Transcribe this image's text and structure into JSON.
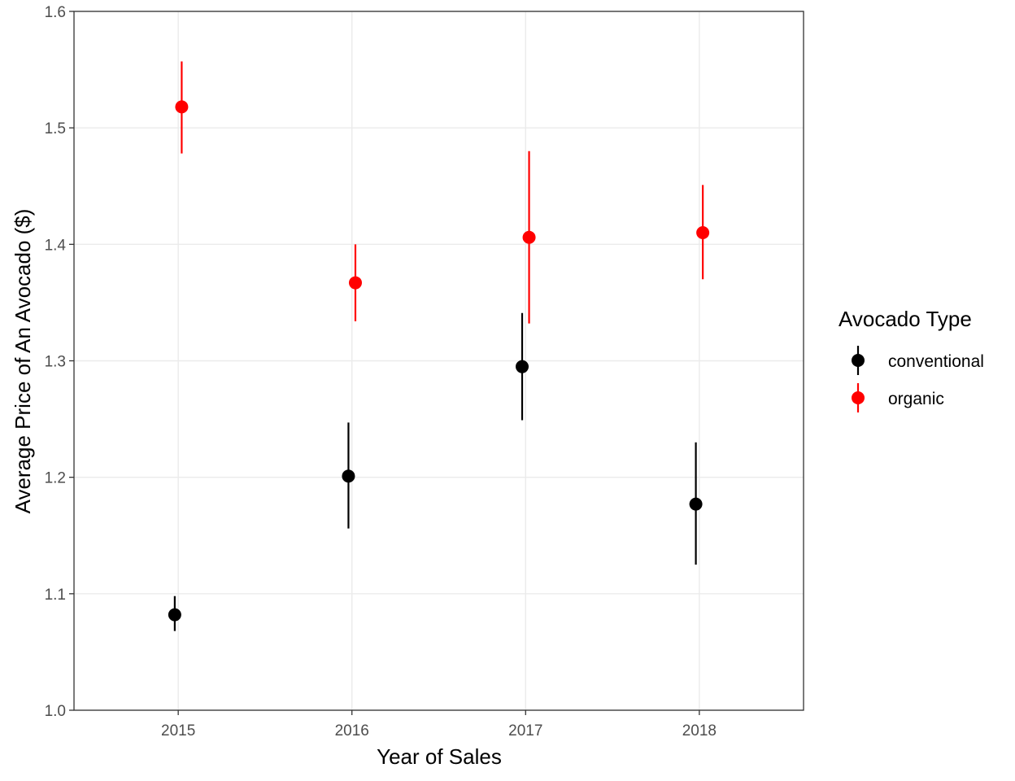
{
  "chart_data": {
    "type": "scatter",
    "xlabel": "Year of Sales",
    "ylabel": "Average Price of An Avocado ($)",
    "categories": [
      "2015",
      "2016",
      "2017",
      "2018"
    ],
    "ylim": [
      1.0,
      1.6
    ],
    "yticks": [
      "1.0",
      "1.1",
      "1.2",
      "1.3",
      "1.4",
      "1.5",
      "1.6"
    ],
    "grid": true,
    "legend": {
      "title": "Avocado Type",
      "position": "right"
    },
    "series": [
      {
        "name": "conventional",
        "color": "#000000",
        "dodge": -0.02,
        "values": [
          1.082,
          1.201,
          1.295,
          1.177
        ],
        "lower": [
          1.068,
          1.156,
          1.249,
          1.125
        ],
        "upper": [
          1.098,
          1.247,
          1.341,
          1.23
        ]
      },
      {
        "name": "organic",
        "color": "#ff0000",
        "dodge": 0.02,
        "values": [
          1.518,
          1.367,
          1.406,
          1.41
        ],
        "lower": [
          1.478,
          1.334,
          1.332,
          1.37
        ],
        "upper": [
          1.557,
          1.4,
          1.48,
          1.451
        ]
      }
    ]
  }
}
